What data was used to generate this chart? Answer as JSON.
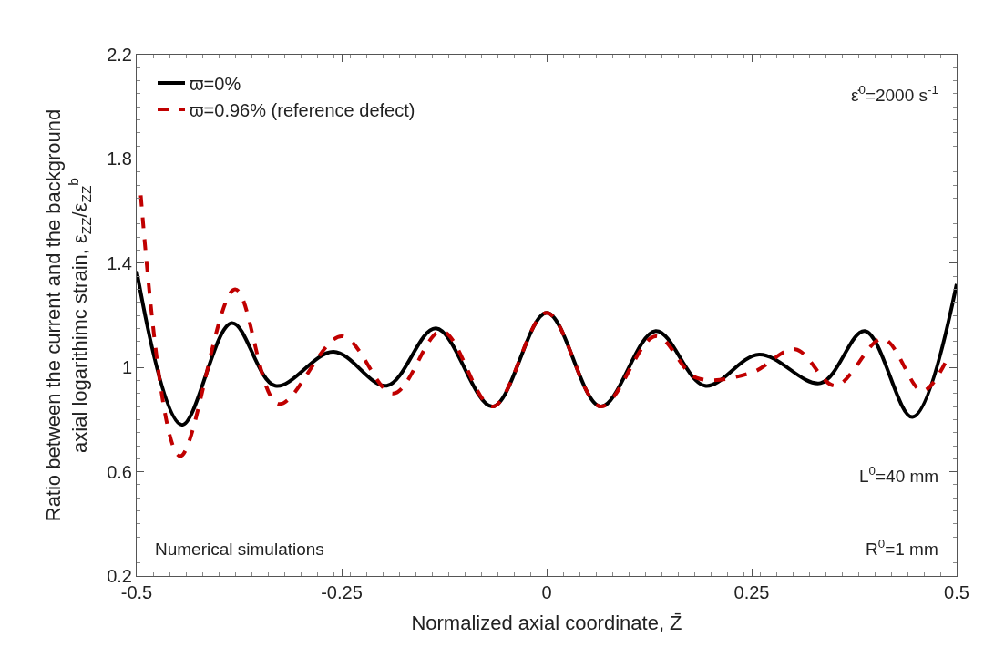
{
  "chart_data": {
    "type": "line",
    "xlabel": "Normalized axial coordinate, Z̄",
    "ylabel": "Ratio between the current and the background\naxial logarithimc strain, ε$_{ZZ}$/ε$_{ZZ}$$^{b}$",
    "xlim": [
      -0.5,
      0.5
    ],
    "xticks": [
      -0.5,
      -0.25,
      0,
      0.25,
      0.5
    ],
    "ylim": [
      0.2,
      2.2
    ],
    "yticks": [
      0.2,
      0.6,
      1,
      1.4,
      1.8,
      2.2
    ],
    "legend": "top left",
    "marker": "none",
    "annotations": [
      "ε̇$^{0}$=2000 s$^{-1}$",
      "L$^{0}$=40 mm",
      "R$^{0}$=1 mm",
      "Numerical simulations"
    ],
    "series": [
      {
        "name": "ϖ=0%",
        "color": "#000000",
        "line_style": "solid",
        "x": [
          -0.5,
          -0.445,
          -0.384,
          -0.331,
          -0.26,
          -0.195,
          -0.135,
          -0.066,
          0,
          0.066,
          0.133,
          0.193,
          0.259,
          0.334,
          0.388,
          0.446,
          0.5
        ],
        "values": [
          1.37,
          0.78,
          1.17,
          0.93,
          1.06,
          0.93,
          1.15,
          0.85,
          1.21,
          0.85,
          1.14,
          0.93,
          1.05,
          0.94,
          1.14,
          0.81,
          1.32
        ]
      },
      {
        "name": "ϖ=0.96% (reference defect)",
        "color": "#c00000",
        "line_style": "dashed",
        "x": [
          -0.495,
          -0.447,
          -0.38,
          -0.327,
          -0.25,
          -0.187,
          -0.128,
          -0.066,
          0,
          0.066,
          0.133,
          0.183,
          0.25,
          0.303,
          0.352,
          0.41,
          0.458,
          0.488
        ],
        "values": [
          1.66,
          0.66,
          1.3,
          0.86,
          1.12,
          0.9,
          1.14,
          0.85,
          1.21,
          0.85,
          1.12,
          0.96,
          0.98,
          1.07,
          0.93,
          1.11,
          0.91,
          1.03
        ]
      }
    ]
  }
}
